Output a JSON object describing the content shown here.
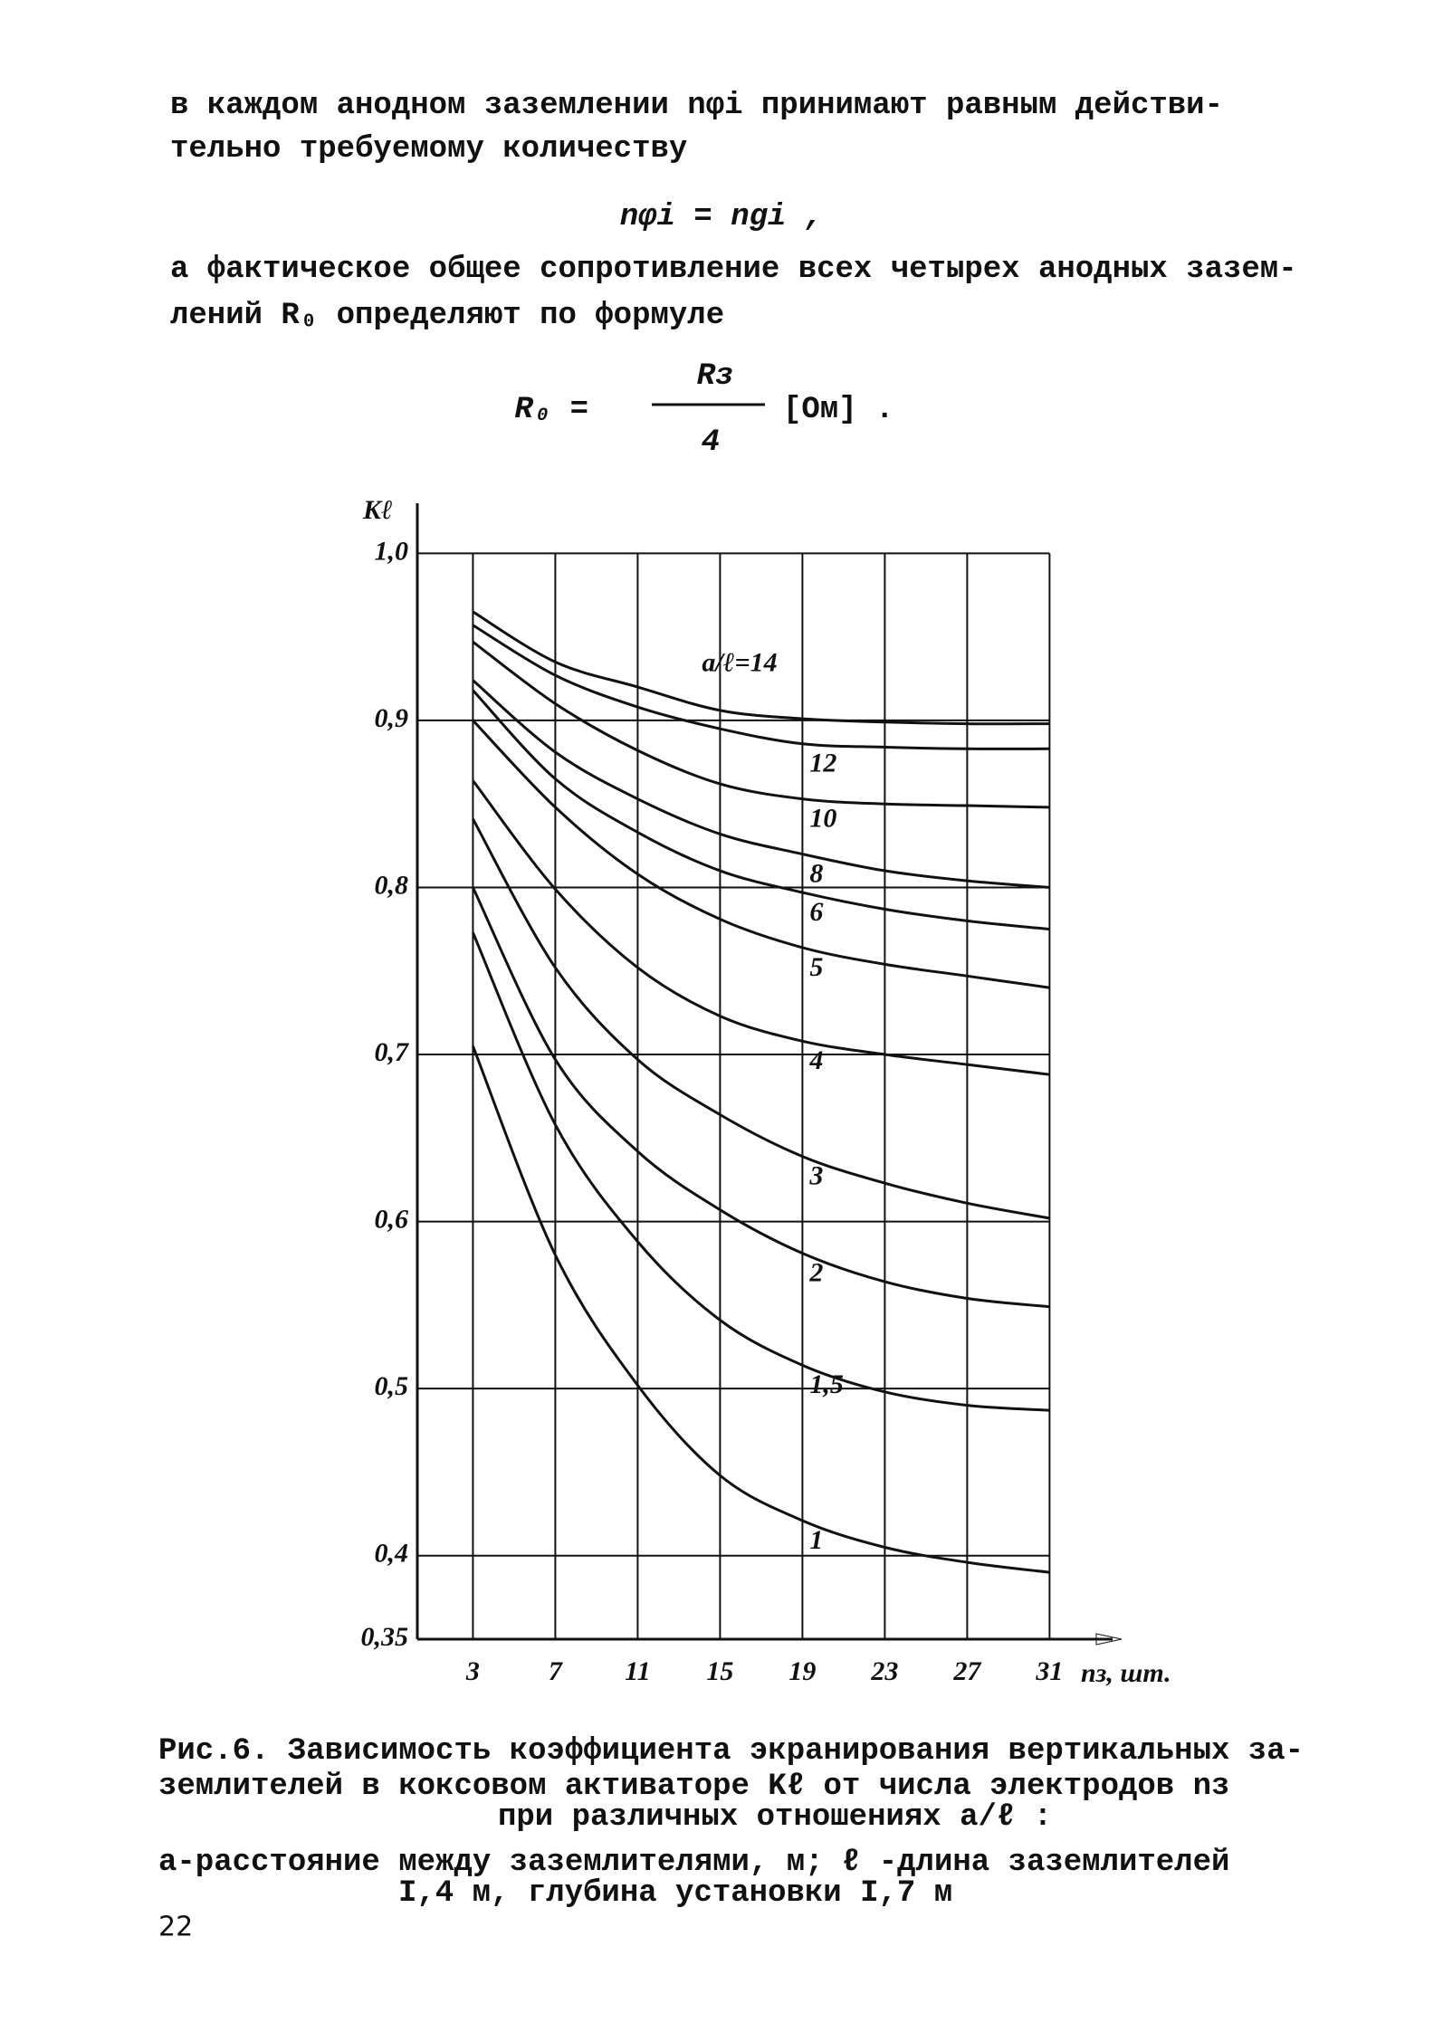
{
  "paragraph_1": {
    "lines": [
      "в каждом анодном заземлении  nφi  принимают равным действи-",
      "тельно требуемому количеству"
    ]
  },
  "formula_1": "nφi = ngi ,",
  "paragraph_2": {
    "lines": [
      "а фактическое общее сопротивление всех четырех анодных зазем-",
      "лений  R₀   определяют по формуле"
    ]
  },
  "formula_2": {
    "lhs": "R₀  =",
    "numerator": "Rз",
    "denominator": "4",
    "unit": "[Ом] ."
  },
  "chart_data": {
    "type": "line",
    "y_label": "Kℓ",
    "x_label": "nз, шт.",
    "x": [
      3,
      7,
      11,
      15,
      19,
      23,
      27,
      31
    ],
    "xlim": [
      0.3,
      34.5
    ],
    "xticks": [
      3,
      7,
      11,
      15,
      19,
      23,
      27,
      31
    ],
    "ylim": [
      0.35,
      1.03
    ],
    "yticks": [
      {
        "value": 0.35,
        "label": "0,35"
      },
      {
        "value": 0.4,
        "label": "0,4"
      },
      {
        "value": 0.5,
        "label": "0,5"
      },
      {
        "value": 0.6,
        "label": "0,6"
      },
      {
        "value": 0.7,
        "label": "0,7"
      },
      {
        "value": 0.8,
        "label": "0,8"
      },
      {
        "value": 0.9,
        "label": "0,9"
      },
      {
        "value": 1.0,
        "label": "1,0"
      }
    ],
    "grid": true,
    "color": "#111111",
    "series": [
      {
        "name": "a/ℓ=14",
        "values": [
          0.965,
          0.935,
          0.92,
          0.906,
          0.901,
          0.899,
          0.898,
          0.898
        ]
      },
      {
        "name": "12",
        "values": [
          0.957,
          0.927,
          0.908,
          0.895,
          0.886,
          0.884,
          0.883,
          0.883
        ]
      },
      {
        "name": "10",
        "values": [
          0.947,
          0.91,
          0.882,
          0.862,
          0.853,
          0.85,
          0.849,
          0.848
        ]
      },
      {
        "name": "8",
        "values": [
          0.924,
          0.881,
          0.853,
          0.832,
          0.82,
          0.81,
          0.804,
          0.8
        ]
      },
      {
        "name": "6",
        "values": [
          0.918,
          0.865,
          0.833,
          0.81,
          0.797,
          0.787,
          0.78,
          0.775
        ]
      },
      {
        "name": "5",
        "values": [
          0.9,
          0.848,
          0.808,
          0.781,
          0.764,
          0.754,
          0.747,
          0.74
        ]
      },
      {
        "name": "4",
        "values": [
          0.864,
          0.799,
          0.752,
          0.723,
          0.708,
          0.7,
          0.694,
          0.688
        ]
      },
      {
        "name": "3",
        "values": [
          0.841,
          0.752,
          0.697,
          0.664,
          0.639,
          0.623,
          0.611,
          0.602
        ]
      },
      {
        "name": "2",
        "values": [
          0.8,
          0.697,
          0.642,
          0.607,
          0.581,
          0.564,
          0.554,
          0.549
        ]
      },
      {
        "name": "1,5",
        "values": [
          0.773,
          0.658,
          0.588,
          0.541,
          0.514,
          0.498,
          0.49,
          0.487
        ]
      },
      {
        "name": "1",
        "values": [
          0.705,
          0.58,
          0.502,
          0.448,
          0.421,
          0.405,
          0.396,
          0.39
        ]
      }
    ]
  },
  "caption": {
    "lines": [
      "Рис.6. Зависимость коэффициента экранирования вертикальных за-",
      "землителей в коксовом активаторе  Kℓ  от числа электродов  nз",
      "при различных отношениях  a/ℓ :"
    ]
  },
  "note": {
    "lines": [
      "а-расстояние между заземлителями, м; ℓ -длина заземлителей",
      "I,4 м, глубина установки I,7 м"
    ]
  },
  "page_number": "22"
}
